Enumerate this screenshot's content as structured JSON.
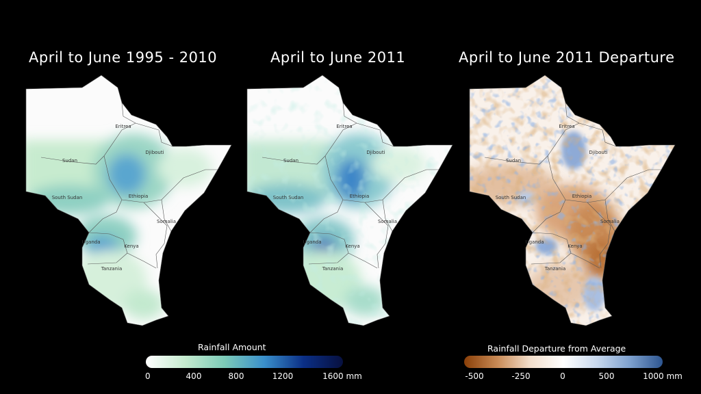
{
  "panels": [
    {
      "title": "April to June 1995 - 2010",
      "labels": [
        "Sudan",
        "Eritrea",
        "Djibouti",
        "South Sudan",
        "Ethiopia",
        "Somalia",
        "Uganda",
        "Kenya",
        "Tanzania"
      ]
    },
    {
      "title": "April to June 2011",
      "labels": [
        "Sudan",
        "Eritrea",
        "Djibouti",
        "South Sudan",
        "Ethiopia",
        "Somalia",
        "Uganda",
        "Kenya",
        "Tanzania"
      ]
    },
    {
      "title": "April to June 2011 Departure",
      "labels": [
        "Sudan",
        "Eritrea",
        "Djibouti",
        "South Sudan",
        "Ethiopia",
        "Somalia",
        "Uganda",
        "Kenya",
        "Tanzania"
      ]
    }
  ],
  "legends": {
    "rainfall": {
      "title": "Rainfall Amount",
      "ticks": [
        "0",
        "400",
        "800",
        "1200",
        "1600 mm"
      ],
      "colors": [
        "#ffffff",
        "#c5ebcf",
        "#7ccbb8",
        "#3a90cc",
        "#0b2f86",
        "#07103f"
      ]
    },
    "departure": {
      "title": "Rainfall Departure from Average",
      "ticks": [
        "-500",
        "-250",
        "0",
        "500",
        "1000 mm"
      ],
      "colors": [
        "#8a3f08",
        "#c98a55",
        "#f3dfcc",
        "#ffffff",
        "#c9d9ee",
        "#7fa2cf",
        "#2d5590"
      ]
    }
  },
  "colors": {
    "background": "#000000",
    "land_dry": "#fbfbfb",
    "rain_light": "#c7ebcf",
    "rain_mid": "#69b9c9",
    "rain_high": "#2e6fc4",
    "departure_neg": "#b9763f",
    "departure_pos": "#4f79bf",
    "border": "#555555"
  }
}
